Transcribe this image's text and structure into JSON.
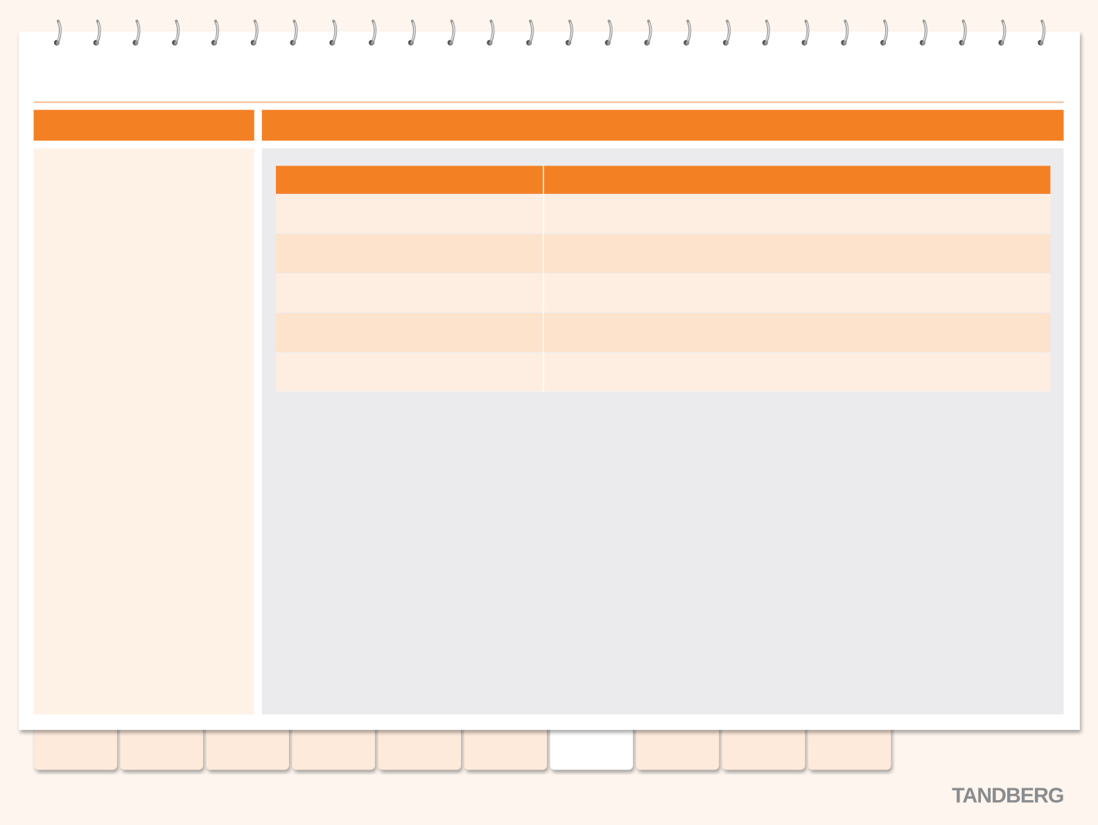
{
  "logo": "TANDBERG"
}
